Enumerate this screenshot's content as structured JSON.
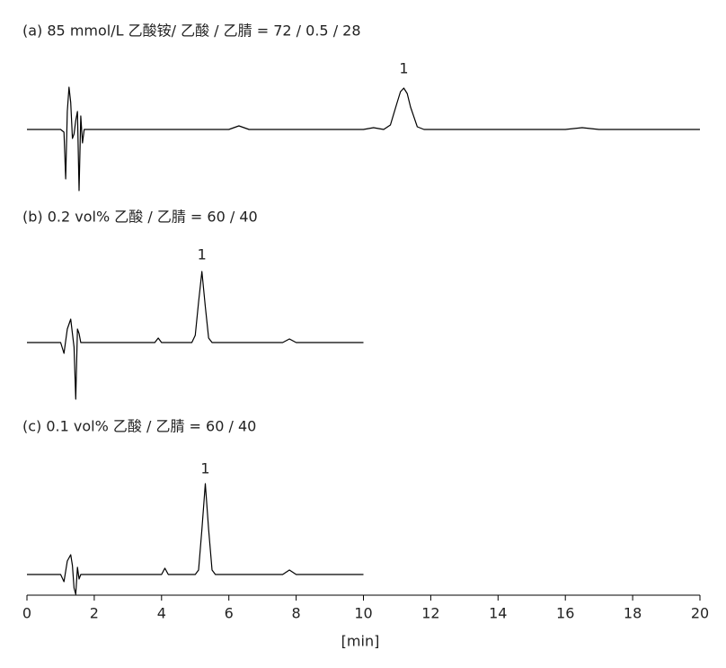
{
  "chart_data": {
    "type": "line",
    "xlabel": "[min]",
    "xlim": [
      0,
      20
    ],
    "xticks": [
      0,
      2,
      4,
      6,
      8,
      10,
      12,
      14,
      16,
      18,
      20
    ],
    "panels": [
      {
        "title": "(a) 85 mmol/L  乙酸铵/ 乙酸 / 乙腈 = 72 / 0.5 / 28",
        "ylim": [
          -70,
          60
        ],
        "annotation": {
          "text": "1",
          "x": 11.2
        },
        "series": [
          {
            "color": "#000000",
            "x": [
              0,
              1.0,
              1.1,
              1.15,
              1.2,
              1.25,
              1.3,
              1.35,
              1.4,
              1.45,
              1.5,
              1.55,
              1.6,
              1.65,
              1.7,
              2,
              3,
              6,
              6.3,
              6.6,
              10,
              10.3,
              10.6,
              10.8,
              11.0,
              11.1,
              11.2,
              11.3,
              11.4,
              11.6,
              11.8,
              16,
              16.5,
              17,
              20
            ],
            "values": [
              0,
              0,
              -3,
              -55,
              20,
              47,
              30,
              -10,
              -5,
              10,
              20,
              -68,
              15,
              -15,
              0,
              0,
              0,
              0,
              4,
              0,
              0,
              2,
              0,
              5,
              30,
              42,
              46,
              40,
              25,
              3,
              0,
              0,
              2,
              0,
              0
            ]
          }
        ]
      },
      {
        "title": "(b) 0.2 vol% 乙酸 / 乙腈 = 60 / 40",
        "ylim": [
          -70,
          90
        ],
        "annotation": {
          "text": "1",
          "x": 5.2
        },
        "series": [
          {
            "color": "#000000",
            "x": [
              0,
              1.0,
              1.1,
              1.2,
              1.3,
              1.35,
              1.4,
              1.45,
              1.5,
              1.55,
              1.6,
              1.7,
              2,
              3.8,
              3.9,
              4.0,
              4.9,
              5.0,
              5.1,
              5.2,
              5.3,
              5.4,
              5.5,
              7.6,
              7.8,
              8.0,
              10
            ],
            "values": [
              0,
              0,
              -12,
              15,
              26,
              10,
              -5,
              -63,
              15,
              10,
              0,
              0,
              0,
              0,
              5,
              0,
              0,
              8,
              45,
              79,
              40,
              5,
              0,
              0,
              4,
              0,
              0
            ]
          }
        ]
      },
      {
        "title": "(c) 0.1 vol% 乙酸 / 乙腈 = 60 / 40",
        "ylim": [
          -30,
          110
        ],
        "annotation": {
          "text": "1",
          "x": 5.3
        },
        "series": [
          {
            "color": "#000000",
            "x": [
              0,
              1.0,
              1.1,
              1.2,
              1.3,
              1.35,
              1.4,
              1.45,
              1.5,
              1.55,
              1.6,
              1.7,
              2.6,
              4.0,
              4.1,
              4.2,
              5.0,
              5.1,
              5.2,
              5.3,
              5.4,
              5.5,
              5.6,
              7.6,
              7.8,
              8.0,
              10
            ],
            "values": [
              0,
              0,
              -8,
              15,
              22,
              10,
              -15,
              -22,
              8,
              -5,
              0,
              0,
              0,
              0,
              7,
              0,
              0,
              5,
              50,
              101,
              50,
              5,
              0,
              0,
              5,
              0,
              0
            ]
          }
        ]
      }
    ]
  }
}
